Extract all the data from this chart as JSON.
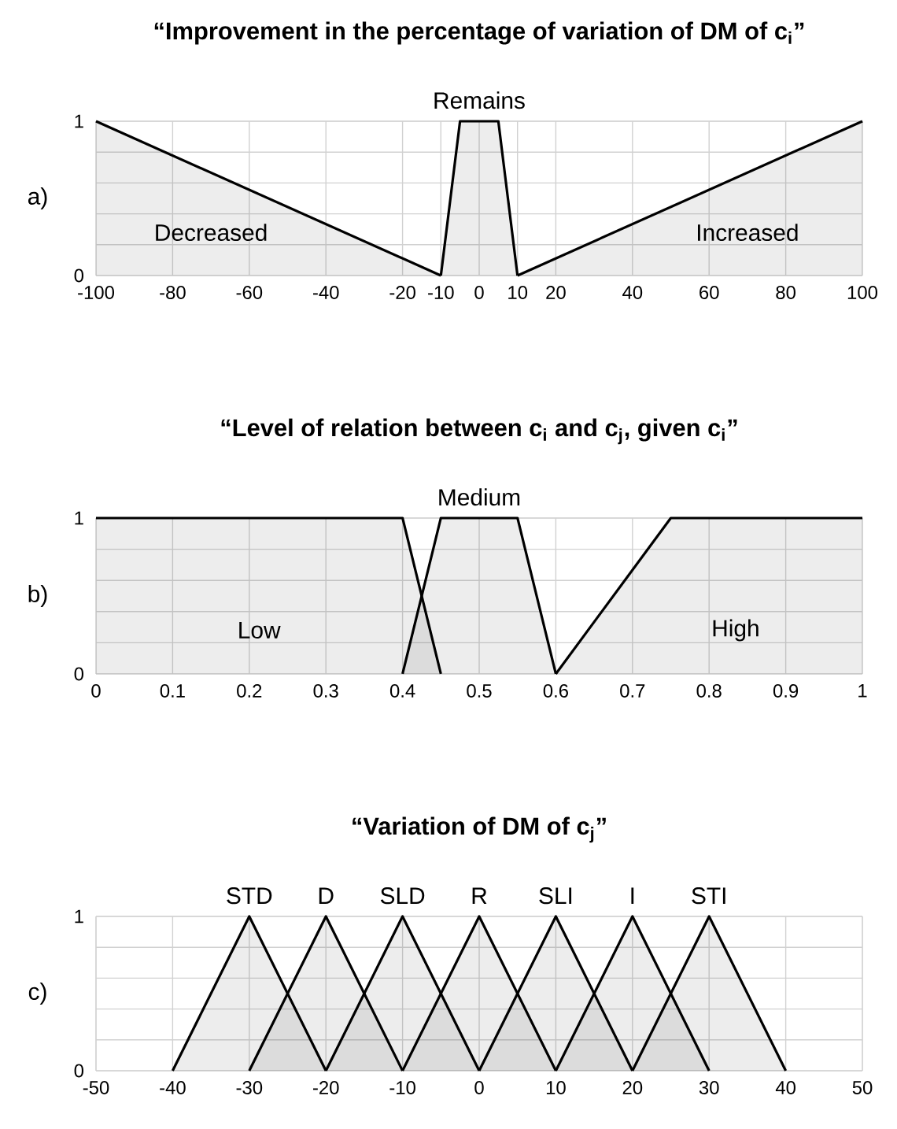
{
  "chart_data": [
    {
      "type": "area",
      "title": "“Improvement in the percentage of variation of DM of c$_{i}$”",
      "ylabel": "a)",
      "xlim": [
        -100,
        100
      ],
      "ylim": [
        0,
        1
      ],
      "xticks": [
        -100,
        -80,
        -60,
        -40,
        -20,
        -10,
        0,
        10,
        20,
        40,
        60,
        80,
        100
      ],
      "yticks": [
        0,
        {
          "value": 0.2,
          "label": null
        },
        {
          "value": 0.4,
          "label": null
        },
        {
          "value": 0.6,
          "label": null
        },
        {
          "value": 0.8,
          "label": null
        },
        1
      ],
      "grid": true,
      "series": [
        {
          "name": "Decreased",
          "color": "#000000",
          "x": [
            -100,
            -10
          ],
          "values": [
            1,
            0
          ]
        },
        {
          "name": "Remains",
          "color": "#000000",
          "x": [
            -10,
            -5,
            5,
            10
          ],
          "values": [
            0,
            1,
            1,
            0
          ]
        },
        {
          "name": "Increased",
          "color": "#000000",
          "x": [
            10,
            100
          ],
          "values": [
            0,
            1
          ]
        }
      ]
    },
    {
      "type": "area",
      "title": "“Level of relation between c$_{i}$ and c$_{j}$, given c$_{i}$”",
      "ylabel": "b)",
      "xlim": [
        0,
        1
      ],
      "ylim": [
        0,
        1
      ],
      "xticks": [
        0,
        0.1,
        0.2,
        0.3,
        0.4,
        0.5,
        0.6,
        0.7,
        0.8,
        0.9,
        1
      ],
      "yticks": [
        0,
        {
          "value": 0.2,
          "label": null
        },
        {
          "value": 0.4,
          "label": null
        },
        {
          "value": 0.6,
          "label": null
        },
        {
          "value": 0.8,
          "label": null
        },
        1
      ],
      "grid": true,
      "series": [
        {
          "name": "Low",
          "color": "#000000",
          "x": [
            0,
            0.4,
            0.45
          ],
          "values": [
            1,
            1,
            0
          ]
        },
        {
          "name": "Medium",
          "color": "#000000",
          "x": [
            0.4,
            0.45,
            0.55,
            0.6
          ],
          "values": [
            0,
            1,
            1,
            0
          ]
        },
        {
          "name": "High",
          "color": "#000000",
          "x": [
            0.6,
            0.75,
            1
          ],
          "values": [
            0,
            1,
            1
          ]
        }
      ]
    },
    {
      "type": "area",
      "title": "“Variation of DM of c$_{j}$”",
      "ylabel": "c)",
      "xlim": [
        -50,
        50
      ],
      "ylim": [
        0,
        1
      ],
      "xticks": [
        -50,
        -40,
        -30,
        -20,
        -10,
        0,
        10,
        20,
        30,
        40,
        50
      ],
      "yticks": [
        0,
        {
          "value": 0.2,
          "label": null
        },
        {
          "value": 0.4,
          "label": null
        },
        {
          "value": 0.6,
          "label": null
        },
        {
          "value": 0.8,
          "label": null
        },
        1
      ],
      "grid": true,
      "series": [
        {
          "name": "STD",
          "color": "#000000",
          "x": [
            -40,
            -30,
            -20
          ],
          "values": [
            0,
            1,
            0
          ]
        },
        {
          "name": "D",
          "color": "#000000",
          "x": [
            -30,
            -20,
            -10
          ],
          "values": [
            0,
            1,
            0
          ]
        },
        {
          "name": "SLD",
          "color": "#000000",
          "x": [
            -20,
            -10,
            0
          ],
          "values": [
            0,
            1,
            0
          ]
        },
        {
          "name": "R",
          "color": "#000000",
          "x": [
            -10,
            0,
            10
          ],
          "values": [
            0,
            1,
            0
          ]
        },
        {
          "name": "SLI",
          "color": "#000000",
          "x": [
            0,
            10,
            20
          ],
          "values": [
            0,
            1,
            0
          ]
        },
        {
          "name": "I",
          "color": "#000000",
          "x": [
            10,
            20,
            30
          ],
          "values": [
            0,
            1,
            0
          ]
        },
        {
          "name": "STI",
          "color": "#000000",
          "x": [
            20,
            30,
            40
          ],
          "values": [
            0,
            1,
            0
          ]
        }
      ]
    }
  ]
}
